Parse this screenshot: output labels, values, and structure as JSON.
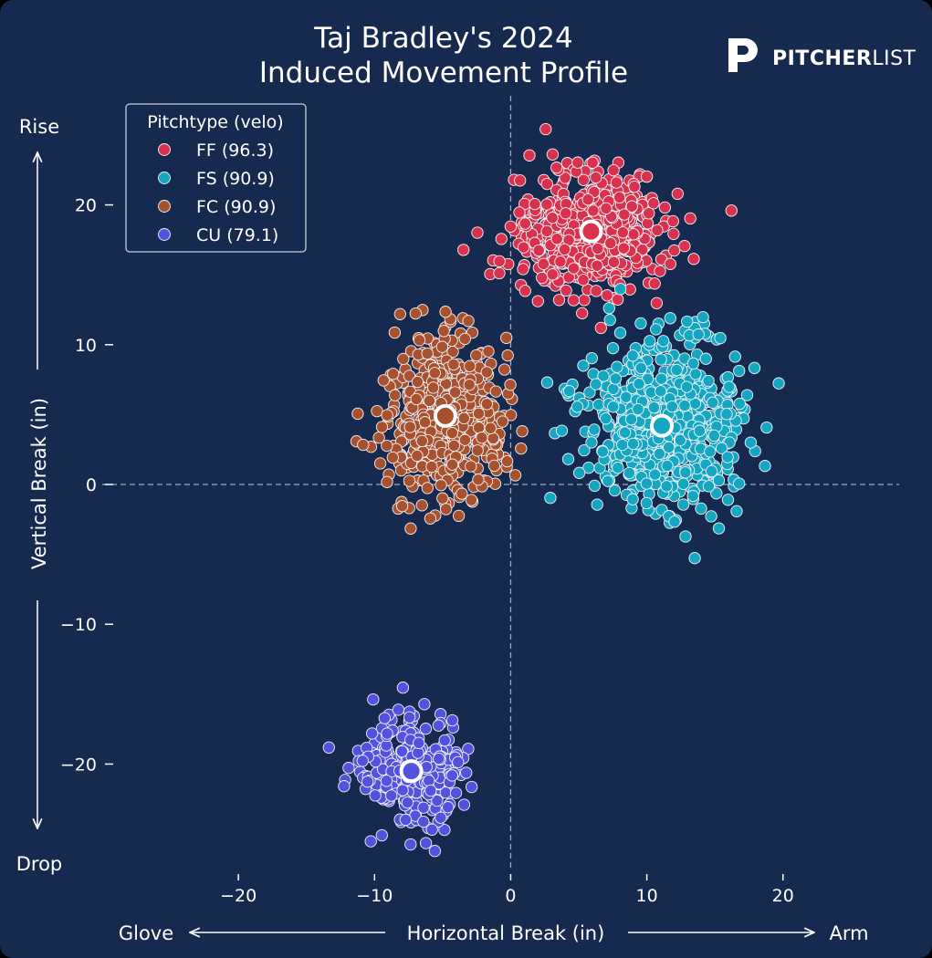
{
  "brand": {
    "logo_icon": "pitcherlist-p-icon",
    "name_bold": "PITCHER",
    "name_light": "LIST"
  },
  "chart_data": {
    "type": "scatter",
    "title": [
      "Taj Bradley's 2024",
      "Induced Movement Profile"
    ],
    "xlabel": "Horizontal Break (in)",
    "ylabel": "Vertical Break (in)",
    "x_left_label": "Glove",
    "x_right_label": "Arm",
    "y_top_label": "Rise",
    "y_bottom_label": "Drop",
    "xlim": [
      -30,
      29
    ],
    "ylim": [
      -28,
      28
    ],
    "xticks": [
      -20,
      -10,
      0,
      10,
      20
    ],
    "yticks": [
      -20,
      -10,
      0,
      10,
      20
    ],
    "xtick_labels": [
      "−20",
      "−10",
      "0",
      "10",
      "20"
    ],
    "ytick_labels": [
      "−20",
      "−10",
      "0",
      "10",
      "20"
    ],
    "grid": false,
    "zero_lines": true,
    "legend": {
      "title": "Pitchtype (velo)",
      "placement": "top-left"
    },
    "series": [
      {
        "name": "FF (96.3)",
        "pitch": "FF",
        "velo": 96.3,
        "color": "#d9324e",
        "centroid": {
          "x": 5.9,
          "y": 18.1
        },
        "spread": {
          "x": 2.6,
          "y": 2.0
        },
        "count": 700
      },
      {
        "name": "FS (90.9)",
        "pitch": "FS",
        "velo": 90.9,
        "color": "#15a7c2",
        "centroid": {
          "x": 11.1,
          "y": 4.2
        },
        "spread": {
          "x": 2.8,
          "y": 3.1
        },
        "count": 680
      },
      {
        "name": "FC (90.9)",
        "pitch": "FC",
        "velo": 90.9,
        "color": "#a8512f",
        "centroid": {
          "x": -4.8,
          "y": 4.9
        },
        "spread": {
          "x": 2.2,
          "y": 3.0
        },
        "count": 520
      },
      {
        "name": "CU (79.1)",
        "pitch": "CU",
        "velo": 79.1,
        "color": "#5252df",
        "centroid": {
          "x": -7.3,
          "y": -20.5
        },
        "spread": {
          "x": 2.0,
          "y": 1.9
        },
        "count": 300
      }
    ]
  }
}
